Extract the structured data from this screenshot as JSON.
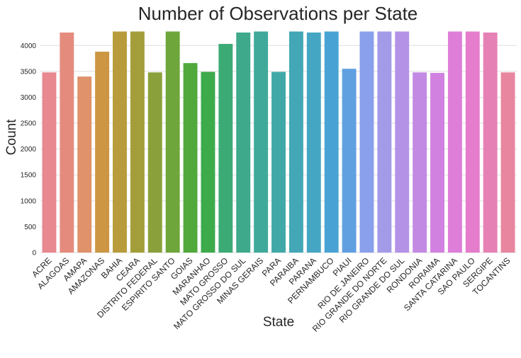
{
  "chart_data": {
    "type": "bar",
    "title": "Number of Observations per State",
    "xlabel": "State",
    "ylabel": "Count",
    "ylim": [
      0,
      4400
    ],
    "yticks": [
      0,
      500,
      1000,
      1500,
      2000,
      2500,
      3000,
      3500,
      4000
    ],
    "grid": "horizontal",
    "legend": "none",
    "categories": [
      "ACRE",
      "ALAGOAS",
      "AMAPA",
      "AMAZONAS",
      "BAHIA",
      "CEARA",
      "DISTRITO FEDERAL",
      "ESPIRITO SANTO",
      "GOIAS",
      "MARANHAO",
      "MATO GROSSO",
      "MATO GROSSO DO SUL",
      "MINAS GERAIS",
      "PARA",
      "PARAIBA",
      "PARANA",
      "PERNAMBUCO",
      "PIAUI",
      "RIO DE JANEIRO",
      "RIO GRANDE DO NORTE",
      "RIO GRANDE DO SUL",
      "RONDONIA",
      "RORAIMA",
      "SANTA CATARINA",
      "SAO PAULO",
      "SERGIPE",
      "TOCANTINS"
    ],
    "values": [
      3480,
      4250,
      3400,
      3880,
      4270,
      4270,
      3480,
      4270,
      3660,
      3490,
      4030,
      4250,
      4270,
      3490,
      4270,
      4250,
      4270,
      3550,
      4270,
      4270,
      4270,
      3480,
      3470,
      4270,
      4270,
      4250,
      3480
    ],
    "colors": [
      "#e8888f",
      "#e58b7e",
      "#e0926b",
      "#cc9643",
      "#b89b3c",
      "#a39e3a",
      "#8aa13b",
      "#6ea63b",
      "#51a93c",
      "#3daa4b",
      "#3caa75",
      "#3ea98b",
      "#40a99a",
      "#41a8a8",
      "#43a7b6",
      "#45a6c4",
      "#48a3d4",
      "#60a0e0",
      "#8aa0ec",
      "#a39ae8",
      "#b493e6",
      "#c38ae4",
      "#d181e0",
      "#de7ed9",
      "#e57dcc",
      "#e681b6",
      "#e886a0"
    ]
  }
}
